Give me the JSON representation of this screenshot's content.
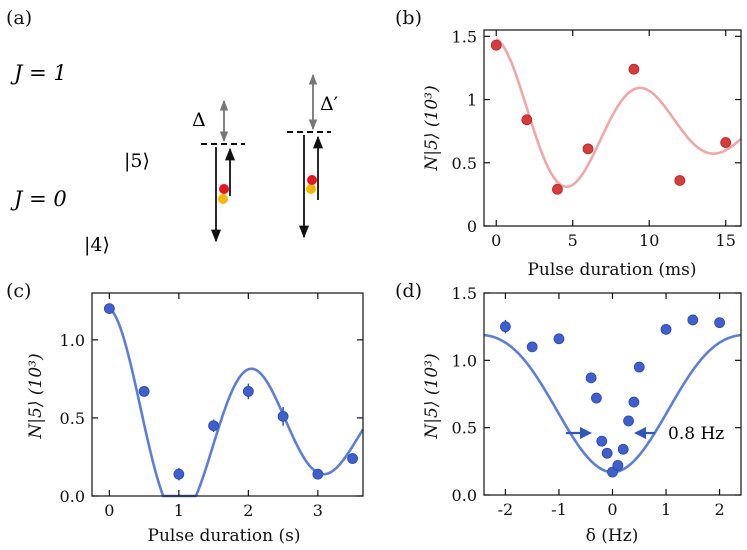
{
  "colors": {
    "fit_b": "#f2a6a6",
    "point_b": "#d93a3a",
    "fit_cd": "#5b7fd9",
    "point_cd": "#3d5fd1",
    "arrow_blue": "#2f56c0",
    "lattice_light": "#d04555",
    "lattice_dark": "#8a1a2e",
    "parabola_gray": "#b0b0b0",
    "atom_red": "#e8141e",
    "atom_yellow": "#f5b800"
  },
  "panel_a": {
    "label": "(a)",
    "j1": "J = 1",
    "j0": "J = 0",
    "state5": "|5⟩",
    "state4": "|4⟩",
    "delta": "Δ",
    "delta_prime": "Δ′"
  },
  "chart_data": [
    {
      "panel": "(b)",
      "type": "scatter",
      "title": "",
      "xlabel": "Pulse duration (ms)",
      "ylabel": "N|5⟩ (10³)",
      "xlim": [
        -0.8,
        16
      ],
      "ylim": [
        0,
        1.55
      ],
      "xticks": [
        0,
        5,
        10,
        15
      ],
      "yticks": [
        0,
        0.5,
        1,
        1.5
      ],
      "ytick_labels": [
        "0",
        "0.5",
        "1",
        "1.5"
      ],
      "x": [
        0,
        2,
        4,
        6,
        9,
        12,
        15
      ],
      "y": [
        1.43,
        0.84,
        0.29,
        0.61,
        1.24,
        0.36,
        0.66
      ],
      "fit_model": {
        "offset": 0.78,
        "amp": 0.7,
        "omega": 0.6545,
        "decay": 0.085
      }
    },
    {
      "panel": "(c)",
      "type": "scatter",
      "title": "",
      "xlabel": "Pulse duration (s)",
      "ylabel": "N|5⟩ (10³)",
      "xlim": [
        -0.25,
        3.65
      ],
      "ylim": [
        0,
        1.3
      ],
      "xticks": [
        0,
        1,
        2,
        3
      ],
      "yticks": [
        0,
        0.5,
        1.0
      ],
      "ytick_labels": [
        "0.0",
        "0.5",
        "1.0"
      ],
      "x": [
        0,
        0.5,
        1.0,
        1.5,
        2.0,
        2.5,
        3.0,
        3.5
      ],
      "y": [
        1.2,
        0.67,
        0.14,
        0.45,
        0.67,
        0.51,
        0.14,
        0.24
      ],
      "yerr": [
        0,
        0.02,
        0.04,
        0.04,
        0.05,
        0.06,
        0.01,
        0.03
      ],
      "fit_model": {
        "offset": 0.42,
        "amp": 0.78,
        "omega": 3.02,
        "decay": 0.33
      }
    },
    {
      "panel": "(d)",
      "type": "scatter",
      "title": "",
      "xlabel": "δ (Hz)",
      "ylabel": "N|5⟩ (10³)",
      "xlim": [
        -2.4,
        2.4
      ],
      "ylim": [
        0,
        1.5
      ],
      "xticks": [
        -2,
        -1,
        0,
        1,
        2
      ],
      "xtick_labels": [
        "-2",
        "-1",
        "0",
        "1",
        "2"
      ],
      "yticks": [
        0,
        0.5,
        1.0,
        1.5
      ],
      "ytick_labels": [
        "0.0",
        "0.5",
        "1.0",
        "1.5"
      ],
      "x": [
        -2.0,
        -1.5,
        -1.0,
        -0.4,
        -0.3,
        -0.2,
        -0.1,
        0.0,
        0.1,
        0.2,
        0.3,
        0.4,
        0.5,
        1.0,
        1.5,
        2.0
      ],
      "y": [
        1.25,
        1.1,
        1.16,
        0.87,
        0.72,
        0.4,
        0.31,
        0.17,
        0.22,
        0.34,
        0.55,
        0.69,
        0.95,
        1.23,
        1.3,
        1.28
      ],
      "yerr": [
        0.05,
        0.02,
        0.02,
        0.03,
        0.03,
        0.03,
        0.02,
        0.02,
        0.02,
        0.03,
        0.03,
        0.03,
        0.02,
        0.02,
        0.01,
        0.01
      ],
      "annotation": "0.8 Hz",
      "fit_model": {
        "baseline": 1.19,
        "depth": 1.02,
        "omega": 1.25
      }
    }
  ]
}
